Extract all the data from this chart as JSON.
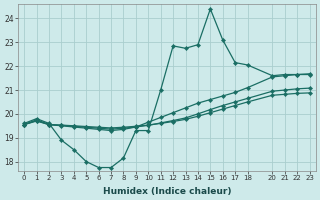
{
  "xlabel": "Humidex (Indice chaleur)",
  "ylabel": "",
  "bg_color": "#ceeaea",
  "line_color": "#1a6e64",
  "grid_color": "#aacece",
  "ylim": [
    17.6,
    24.6
  ],
  "xlim": [
    -0.5,
    23.5
  ],
  "yticks": [
    18,
    19,
    20,
    21,
    22,
    23,
    24
  ],
  "xticks": [
    0,
    1,
    2,
    3,
    4,
    5,
    6,
    7,
    8,
    9,
    10,
    11,
    12,
    13,
    14,
    15,
    16,
    17,
    18,
    20,
    21,
    22,
    23
  ],
  "line1_x": [
    0,
    1,
    2,
    3,
    4,
    5,
    6,
    7,
    8,
    9,
    10,
    11,
    12,
    13,
    14,
    15,
    16,
    17,
    18,
    20,
    21,
    22,
    23
  ],
  "line1_y": [
    19.6,
    19.8,
    19.6,
    18.9,
    18.5,
    18.0,
    17.75,
    17.75,
    18.15,
    19.3,
    19.3,
    21.0,
    22.85,
    22.75,
    22.9,
    24.4,
    23.1,
    22.15,
    22.05,
    21.6,
    21.65,
    21.65,
    21.65
  ],
  "line2_x": [
    0,
    1,
    2,
    3,
    4,
    5,
    6,
    7,
    8,
    9,
    10,
    11,
    12,
    13,
    14,
    15,
    16,
    17,
    18,
    20,
    21,
    22,
    23
  ],
  "line2_y": [
    19.55,
    19.75,
    19.55,
    19.5,
    19.45,
    19.4,
    19.35,
    19.3,
    19.35,
    19.45,
    19.65,
    19.85,
    20.05,
    20.25,
    20.45,
    20.6,
    20.75,
    20.9,
    21.1,
    21.55,
    21.6,
    21.65,
    21.68
  ],
  "line3_x": [
    0,
    1,
    2,
    3,
    4,
    5,
    6,
    7,
    8,
    9,
    10,
    11,
    12,
    13,
    14,
    15,
    16,
    17,
    18,
    20,
    21,
    22,
    23
  ],
  "line3_y": [
    19.55,
    19.72,
    19.55,
    19.52,
    19.48,
    19.44,
    19.4,
    19.36,
    19.4,
    19.45,
    19.52,
    19.62,
    19.72,
    19.83,
    20.0,
    20.18,
    20.35,
    20.5,
    20.65,
    20.95,
    21.0,
    21.05,
    21.08
  ],
  "line4_x": [
    0,
    1,
    2,
    3,
    4,
    5,
    6,
    7,
    8,
    9,
    10,
    11,
    12,
    13,
    14,
    15,
    16,
    17,
    18,
    20,
    21,
    22,
    23
  ],
  "line4_y": [
    19.55,
    19.7,
    19.55,
    19.53,
    19.5,
    19.47,
    19.44,
    19.41,
    19.44,
    19.48,
    19.53,
    19.6,
    19.68,
    19.77,
    19.9,
    20.05,
    20.2,
    20.35,
    20.5,
    20.78,
    20.82,
    20.86,
    20.88
  ]
}
